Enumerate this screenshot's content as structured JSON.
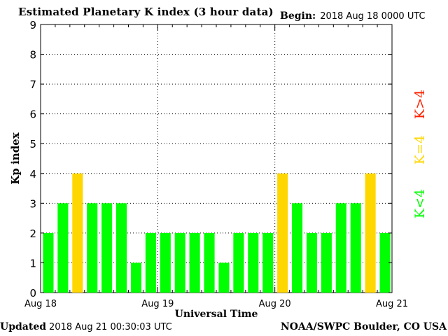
{
  "header": {
    "title": "Estimated Planetary K index (3 hour data)",
    "begin_label": "Begin:",
    "begin_value": "2018 Aug 18 0000 UTC"
  },
  "footer": {
    "updated_label": "Updated",
    "updated_value": "2018 Aug 21 00:30:03 UTC",
    "source": "NOAA/SWPC Boulder, CO USA"
  },
  "legend": {
    "low": {
      "label": "K<4",
      "color": "#00ff00"
    },
    "mid": {
      "label": "K=4",
      "color": "#ffd700"
    },
    "high": {
      "label": "K>4",
      "color": "#ff2200"
    }
  },
  "chart_data": {
    "type": "bar",
    "ylabel": "Kp index",
    "xlabel": "Universal Time",
    "ylim": [
      0,
      9
    ],
    "yticks": [
      "0",
      "1",
      "2",
      "3",
      "4",
      "5",
      "6",
      "7",
      "8",
      "9"
    ],
    "xtick_labels": [
      "Aug 18",
      "Aug 19",
      "Aug 20",
      "Aug 21"
    ],
    "grid": true,
    "values": [
      2,
      3,
      4,
      3,
      3,
      3,
      1,
      2,
      2,
      2,
      2,
      2,
      1,
      2,
      2,
      2,
      4,
      3,
      2,
      2,
      3,
      3,
      4,
      2
    ],
    "colors": {
      "below4": "#00ff00",
      "equal4": "#ffd700",
      "above4": "#ff2200"
    }
  }
}
